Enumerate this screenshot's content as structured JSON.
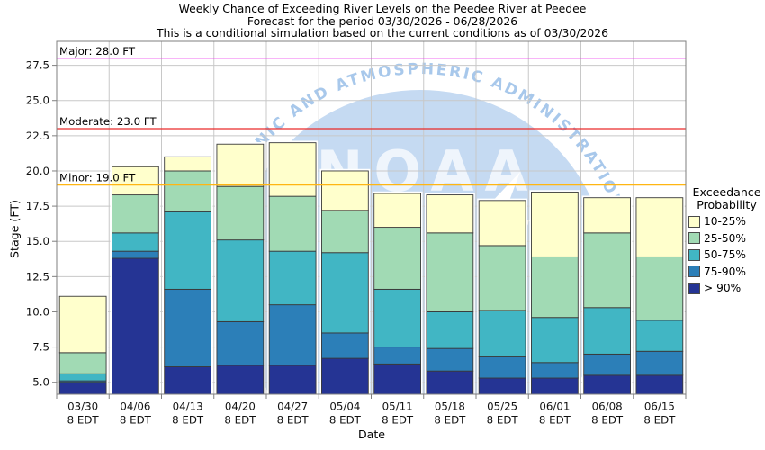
{
  "title": {
    "line1": "Weekly Chance of Exceeding River Levels on the Peedee River at Peedee",
    "line2": "Forecast for the period 03/30/2026 - 06/28/2026",
    "line3": "This is a conditional simulation based on the current conditions as of 03/30/2026"
  },
  "axes": {
    "x_label": "Date",
    "y_label": "Stage (FT)"
  },
  "legend": {
    "title_line1": "Exceedance",
    "title_line2": "Probability",
    "items": [
      {
        "label": "10-25%",
        "color": "#FFFFCC"
      },
      {
        "label": "25-50%",
        "color": "#A1DAB4"
      },
      {
        "label": "50-75%",
        "color": "#41B6C4"
      },
      {
        "label": "75-90%",
        "color": "#2C7FB8"
      },
      {
        "label": "> 90%",
        "color": "#253494"
      }
    ]
  },
  "watermark": {
    "arc_text": "EANIC AND ATMOSPHERIC ADMINISTRATION",
    "center_text": "NOAA",
    "circle_color": "#C5DAF2",
    "arc_color": "#A8C8EB",
    "letters_color": "#EFF5FC"
  },
  "chart_data": {
    "type": "bar",
    "stacked": true,
    "title": "Weekly Chance of Exceeding River Levels on the Peedee River at Peedee",
    "xlabel": "Date",
    "ylabel": "Stage (FT)",
    "ylim": [
      4.15,
      29.2
    ],
    "yticks": [
      5.0,
      7.5,
      10.0,
      12.5,
      15.0,
      17.5,
      20.0,
      22.5,
      25.0,
      27.5
    ],
    "grid": true,
    "legend_position": "right",
    "x_sublabel": "8 EDT",
    "categories": [
      "03/30",
      "04/06",
      "04/13",
      "04/20",
      "04/27",
      "05/04",
      "05/11",
      "05/18",
      "05/25",
      "06/01",
      "06/08",
      "06/15"
    ],
    "series_order": [
      "> 90%",
      "75-90%",
      "50-75%",
      "25-50%",
      "10-25%"
    ],
    "series_keys": [
      "gt90",
      "75-90",
      "50-75",
      "25-50",
      "10-25"
    ],
    "series_colors": [
      "#253494",
      "#2C7FB8",
      "#41B6C4",
      "#A1DAB4",
      "#FFFFCC"
    ],
    "bars": [
      {
        "date": "03/30",
        "base": 4.15,
        "tops": [
          5.0,
          5.1,
          5.6,
          7.1,
          11.1
        ]
      },
      {
        "date": "04/06",
        "base": 4.15,
        "tops": [
          13.8,
          14.3,
          15.6,
          18.3,
          20.3
        ]
      },
      {
        "date": "04/13",
        "base": 4.15,
        "tops": [
          6.1,
          11.6,
          17.1,
          20.0,
          21.0
        ]
      },
      {
        "date": "04/20",
        "base": 4.15,
        "tops": [
          6.2,
          9.3,
          15.1,
          18.9,
          21.9
        ]
      },
      {
        "date": "04/27",
        "base": 4.15,
        "tops": [
          6.2,
          10.5,
          14.3,
          18.2,
          22.0
        ]
      },
      {
        "date": "05/04",
        "base": 4.15,
        "tops": [
          6.7,
          8.5,
          14.2,
          17.2,
          20.0
        ]
      },
      {
        "date": "05/11",
        "base": 4.15,
        "tops": [
          6.3,
          7.5,
          11.6,
          16.0,
          18.4
        ]
      },
      {
        "date": "05/18",
        "base": 4.15,
        "tops": [
          5.8,
          7.4,
          10.0,
          15.6,
          18.3
        ]
      },
      {
        "date": "05/25",
        "base": 4.15,
        "tops": [
          5.3,
          6.8,
          10.1,
          14.7,
          17.9
        ]
      },
      {
        "date": "06/01",
        "base": 4.15,
        "tops": [
          5.3,
          6.4,
          9.6,
          13.9,
          18.5
        ]
      },
      {
        "date": "06/08",
        "base": 4.15,
        "tops": [
          5.5,
          7.0,
          10.3,
          15.6,
          18.1
        ]
      },
      {
        "date": "06/15",
        "base": 4.15,
        "tops": [
          5.5,
          7.2,
          9.4,
          13.9,
          18.1
        ]
      }
    ],
    "thresholds": [
      {
        "key": "minor",
        "label": "Minor: 19.0 FT",
        "value": 19.0,
        "color": "#FFB612"
      },
      {
        "key": "moderate",
        "label": "Moderate: 23.0 FT",
        "value": 23.0,
        "color": "#EA2A2A"
      },
      {
        "key": "major",
        "label": "Major: 28.0 FT",
        "value": 28.0,
        "color": "#EE3AEE"
      }
    ]
  }
}
